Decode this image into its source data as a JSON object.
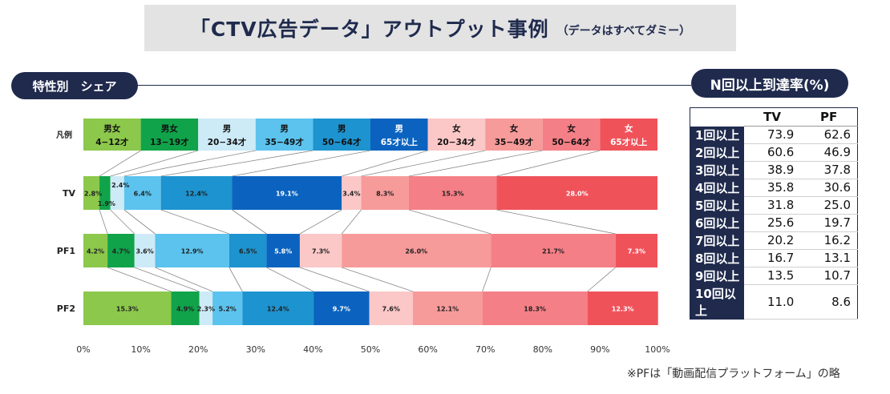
{
  "title": {
    "main": "「CTV広告データ」アウトプット事例",
    "sub": "（データはすべてダミー）"
  },
  "section_left": "特性別　シェア",
  "section_right": "N回以上到達率(%)",
  "footnote": "※PFは「動画配信プラットフォーム」の略",
  "chart_data": {
    "type": "bar",
    "orientation": "horizontal-stacked-100",
    "legend_row_label": "凡例",
    "legend": [
      {
        "line1": "男女",
        "line2": "4−12才",
        "color": "#8cc84b",
        "text_color": "#111111"
      },
      {
        "line1": "男女",
        "line2": "13−19才",
        "color": "#10a34a",
        "text_color": "#111111"
      },
      {
        "line1": "男",
        "line2": "20−34才",
        "color": "#cdeaf7",
        "text_color": "#111111"
      },
      {
        "line1": "男",
        "line2": "35−49才",
        "color": "#5bc3ee",
        "text_color": "#111111"
      },
      {
        "line1": "男",
        "line2": "50−64才",
        "color": "#1d93cf",
        "text_color": "#111111"
      },
      {
        "line1": "男",
        "line2": "65才以上",
        "color": "#0b63bf",
        "text_color": "#ffffff"
      },
      {
        "line1": "女",
        "line2": "20−34才",
        "color": "#fbc7c7",
        "text_color": "#111111"
      },
      {
        "line1": "女",
        "line2": "35−49才",
        "color": "#f79a9a",
        "text_color": "#111111"
      },
      {
        "line1": "女",
        "line2": "50−64才",
        "color": "#f57f86",
        "text_color": "#111111"
      },
      {
        "line1": "女",
        "line2": "65才以上",
        "color": "#f0525a",
        "text_color": "#ffffff"
      }
    ],
    "categories": [
      "TV",
      "PF1",
      "PF2"
    ],
    "series_values": {
      "TV": [
        2.8,
        1.9,
        2.4,
        6.4,
        12.4,
        19.1,
        3.4,
        8.3,
        15.3,
        28.0
      ],
      "PF1": [
        4.2,
        4.7,
        3.6,
        12.9,
        6.5,
        5.8,
        7.3,
        26.0,
        21.7,
        7.3
      ],
      "PF2": [
        15.3,
        4.9,
        2.3,
        5.2,
        12.4,
        9.7,
        7.6,
        12.1,
        18.3,
        12.3
      ]
    },
    "value_labels": {
      "TV": [
        "2.8%",
        "1.9%",
        "2.4%",
        "6.4%",
        "12.4%",
        "19.1%",
        "3.4%",
        "8.3%",
        "15.3%",
        "28.0%"
      ],
      "PF1": [
        "4.2%",
        "4.7%",
        "3.6%",
        "12.9%",
        "6.5%",
        "5.8%",
        "7.3%",
        "26.0%",
        "21.7%",
        "7.3%"
      ],
      "PF2": [
        "15.3%",
        "4.9%",
        "2.3%",
        "5.2%",
        "12.4%",
        "9.7%",
        "7.6%",
        "12.1%",
        "18.3%",
        "12.3%"
      ]
    },
    "x_ticks": [
      "0%",
      "10%",
      "20%",
      "30%",
      "40%",
      "50%",
      "60%",
      "70%",
      "80%",
      "90%",
      "100%"
    ],
    "xlim": [
      0,
      100
    ]
  },
  "reach_table": {
    "columns": [
      "TV",
      "PF"
    ],
    "rows": [
      {
        "label": "1回以上",
        "tv": "73.9",
        "pf": "62.6"
      },
      {
        "label": "2回以上",
        "tv": "60.6",
        "pf": "46.9"
      },
      {
        "label": "3回以上",
        "tv": "38.9",
        "pf": "37.8"
      },
      {
        "label": "4回以上",
        "tv": "35.8",
        "pf": "30.6"
      },
      {
        "label": "5回以上",
        "tv": "31.8",
        "pf": "25.0"
      },
      {
        "label": "6回以上",
        "tv": "25.6",
        "pf": "19.7"
      },
      {
        "label": "7回以上",
        "tv": "20.2",
        "pf": "16.2"
      },
      {
        "label": "8回以上",
        "tv": "16.7",
        "pf": "13.1"
      },
      {
        "label": "9回以上",
        "tv": "13.5",
        "pf": "10.7"
      },
      {
        "label": "10回以上",
        "tv": "11.0",
        "pf": "8.6"
      }
    ]
  }
}
